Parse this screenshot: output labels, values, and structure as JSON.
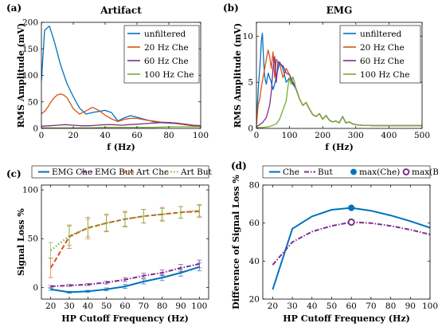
{
  "colors": {
    "blue": "#0072BD",
    "orange": "#D95319",
    "purple": "#7E2F8E",
    "green": "#77AC30",
    "yellow": "#EDB120"
  },
  "panel_labels": [
    "(a)",
    "(b)",
    "(c)",
    "(d)"
  ],
  "chart_data": [
    {
      "id": "a",
      "type": "line",
      "title": "Artifact",
      "xlabel": "f (Hz)",
      "ylabel": "RMS Amplitude (mV)",
      "xlim": [
        0,
        100
      ],
      "ylim": [
        0,
        200
      ],
      "xticks": [
        0,
        20,
        40,
        60,
        80,
        100
      ],
      "yticks": [
        0,
        50,
        100,
        150,
        200
      ],
      "xticklabels": [
        "0",
        "20",
        "40",
        "60",
        "80",
        "100"
      ],
      "yticklabels": [
        "0",
        "50",
        "100",
        "150",
        "200"
      ],
      "grid": false,
      "legend": "top-right",
      "series": [
        {
          "name": "unfiltered",
          "color": "#0072BD",
          "x": [
            0,
            2,
            5,
            8,
            12,
            16,
            20,
            24,
            28,
            32,
            36,
            40,
            44,
            48,
            52,
            56,
            60,
            65,
            70,
            75,
            80,
            85,
            90,
            95,
            100
          ],
          "y": [
            90,
            185,
            193,
            165,
            120,
            85,
            60,
            38,
            27,
            30,
            32,
            34,
            30,
            14,
            20,
            24,
            21,
            17,
            13,
            11,
            10,
            9,
            8,
            6,
            5
          ]
        },
        {
          "name": "20 Hz Che",
          "color": "#D95319",
          "x": [
            0,
            2,
            4,
            6,
            8,
            10,
            12,
            14,
            16,
            18,
            20,
            24,
            28,
            32,
            36,
            40,
            44,
            48,
            52,
            56,
            60,
            65,
            70,
            75,
            80,
            85,
            90,
            95,
            100
          ],
          "y": [
            28,
            32,
            40,
            50,
            58,
            63,
            65,
            63,
            58,
            48,
            37,
            27,
            33,
            40,
            34,
            25,
            18,
            13,
            17,
            19,
            19,
            16,
            14,
            12,
            11,
            9,
            7,
            5,
            3
          ]
        },
        {
          "name": "60 Hz Che",
          "color": "#7E2F8E",
          "x": [
            0,
            5,
            10,
            15,
            20,
            25,
            30,
            35,
            40,
            45,
            50,
            55,
            60,
            65,
            70,
            75,
            80,
            85,
            90,
            95,
            100
          ],
          "y": [
            4,
            5,
            6,
            7,
            6,
            5,
            5,
            6,
            7,
            7,
            6,
            7,
            8,
            9,
            10,
            11,
            11,
            10,
            8,
            6,
            5
          ]
        },
        {
          "name": "100 Hz Che",
          "color": "#77AC30",
          "x": [
            0,
            10,
            20,
            30,
            40,
            50,
            60,
            70,
            80,
            90,
            100
          ],
          "y": [
            1,
            1,
            1,
            1,
            2,
            2,
            2,
            2,
            3,
            3,
            3
          ]
        }
      ]
    },
    {
      "id": "b",
      "type": "line",
      "title": "EMG",
      "xlabel": "f (Hz)",
      "ylabel": "RMS Amplitude (mV)",
      "xlim": [
        0,
        500
      ],
      "ylim": [
        0,
        11.5
      ],
      "xticks": [
        0,
        100,
        200,
        300,
        400,
        500
      ],
      "yticks": [
        0,
        5,
        10
      ],
      "xticklabels": [
        "0",
        "100",
        "200",
        "300",
        "400",
        "500"
      ],
      "yticklabels": [
        "0",
        "5",
        "10"
      ],
      "grid": false,
      "legend": "top-right",
      "series": [
        {
          "name": "unfiltered",
          "color": "#0072BD",
          "x": [
            0,
            3,
            6,
            9,
            12,
            15,
            18,
            21,
            24,
            27,
            30,
            33,
            36,
            40,
            45,
            50,
            55,
            60,
            70,
            80,
            90,
            100,
            110,
            120,
            130,
            140,
            150,
            160,
            170,
            180,
            190,
            200,
            210,
            220,
            230,
            240,
            250,
            260,
            270,
            280,
            290,
            300,
            320,
            350,
            380,
            400,
            450,
            500
          ],
          "y": [
            0.5,
            2.5,
            4.5,
            6,
            7.5,
            9.5,
            10.3,
            8,
            6,
            5.2,
            4.8,
            5.5,
            6,
            5.5,
            5,
            4.2,
            4.8,
            5.6,
            7.2,
            6.5,
            5,
            5.5,
            4.8,
            4.3,
            3.2,
            2.5,
            2.8,
            2.1,
            1.5,
            1.3,
            1.6,
            1,
            1.4,
            0.9,
            0.7,
            0.8,
            0.6,
            1.3,
            0.6,
            0.7,
            0.5,
            0.4,
            0.35,
            0.3,
            0.3,
            0.3,
            0.3,
            0.3
          ]
        },
        {
          "name": "20 Hz Che",
          "color": "#D95319",
          "x": [
            0,
            5,
            10,
            15,
            20,
            25,
            30,
            35,
            40,
            45,
            50,
            55,
            60,
            70,
            80,
            90,
            100,
            110,
            120,
            130,
            140,
            150,
            160,
            170,
            180,
            190,
            200,
            210,
            220,
            230,
            240,
            250,
            260,
            270,
            280,
            290,
            300,
            320,
            350,
            380,
            400,
            450,
            500
          ],
          "y": [
            0.3,
            2.5,
            3.2,
            4.5,
            5.5,
            6.5,
            7.5,
            8.5,
            7.8,
            6.5,
            8.3,
            5.5,
            7.5,
            7,
            5.5,
            6.5,
            5.8,
            5,
            4.2,
            3.2,
            2.5,
            2.8,
            2.1,
            1.5,
            1.3,
            1.6,
            1,
            1.4,
            0.9,
            0.7,
            0.8,
            0.6,
            1.3,
            0.6,
            0.7,
            0.5,
            0.4,
            0.35,
            0.3,
            0.3,
            0.3,
            0.3,
            0.3
          ]
        },
        {
          "name": "60 Hz Che",
          "color": "#7E2F8E",
          "x": [
            0,
            10,
            20,
            30,
            40,
            45,
            50,
            55,
            60,
            65,
            70,
            80,
            90,
            100,
            110,
            120,
            130,
            140,
            150,
            160,
            170,
            180,
            190,
            200,
            210,
            220,
            230,
            240,
            250,
            260,
            270,
            280,
            290,
            300,
            320,
            350,
            380,
            400,
            450,
            500
          ],
          "y": [
            0.2,
            0.4,
            0.7,
            1.2,
            2.5,
            4,
            6.5,
            7.8,
            5,
            7.2,
            7,
            6.8,
            6,
            5.8,
            5,
            4.2,
            3.2,
            2.5,
            2.8,
            2.1,
            1.5,
            1.3,
            1.6,
            1,
            1.4,
            0.9,
            0.7,
            0.8,
            0.6,
            1.3,
            0.6,
            0.7,
            0.5,
            0.4,
            0.35,
            0.3,
            0.3,
            0.3,
            0.3,
            0.3
          ]
        },
        {
          "name": "100 Hz Che",
          "color": "#77AC30",
          "x": [
            0,
            20,
            40,
            60,
            70,
            80,
            90,
            95,
            100,
            105,
            110,
            115,
            120,
            130,
            140,
            150,
            160,
            170,
            180,
            190,
            200,
            210,
            220,
            230,
            240,
            250,
            260,
            270,
            280,
            290,
            300,
            320,
            350,
            380,
            400,
            450,
            500
          ],
          "y": [
            0.1,
            0.1,
            0.2,
            0.5,
            1,
            2,
            3,
            4.5,
            5.5,
            4.8,
            5.6,
            5,
            4.2,
            3.2,
            2.5,
            2.8,
            2.1,
            1.5,
            1.3,
            1.6,
            1,
            1.4,
            0.9,
            0.7,
            0.8,
            0.6,
            1.3,
            0.6,
            0.7,
            0.5,
            0.4,
            0.35,
            0.3,
            0.3,
            0.3,
            0.3,
            0.3
          ]
        }
      ]
    },
    {
      "id": "c",
      "type": "line",
      "xlabel": "HP Cutoff Frequency (Hz)",
      "ylabel": "Signal Loss %",
      "xlim": [
        15,
        105
      ],
      "ylim": [
        -12,
        105
      ],
      "xticks": [
        20,
        30,
        40,
        50,
        60,
        70,
        80,
        90,
        100
      ],
      "yticks": [
        0,
        50,
        100
      ],
      "xticklabels": [
        "20",
        "30",
        "40",
        "50",
        "60",
        "70",
        "80",
        "90",
        "100"
      ],
      "yticklabels": [
        "0",
        "50",
        "100"
      ],
      "grid": false,
      "legend": "top",
      "series": [
        {
          "name": "EMG Che",
          "color": "#0072BD",
          "dash": "solid",
          "x": [
            20,
            30,
            40,
            50,
            60,
            70,
            80,
            90,
            100
          ],
          "y": [
            -2,
            -5,
            -4,
            -2,
            1,
            6,
            10,
            15,
            21
          ],
          "err": [
            1,
            1,
            1,
            1.5,
            2,
            2.5,
            3,
            3.5,
            4
          ]
        },
        {
          "name": "EMG But",
          "color": "#7E2F8E",
          "dash": "dashdot",
          "x": [
            20,
            30,
            40,
            50,
            60,
            70,
            80,
            90,
            100
          ],
          "y": [
            1,
            2,
            3,
            5,
            8,
            12,
            15,
            20,
            24
          ],
          "err": [
            1,
            1,
            1,
            1.5,
            2,
            2.5,
            3,
            3.5,
            4
          ]
        },
        {
          "name": "Art Che",
          "color": "#D95319",
          "dash": "dash",
          "x": [
            20,
            30,
            40,
            50,
            60,
            70,
            80,
            90,
            100
          ],
          "y": [
            20,
            52,
            61,
            66,
            70,
            73,
            75,
            77,
            78
          ],
          "err": [
            10,
            12,
            11,
            9,
            8,
            7,
            7,
            6,
            6
          ]
        },
        {
          "name": "Art But",
          "color": "#77AC30",
          "dash": "dot",
          "x": [
            20,
            30,
            40,
            50,
            60,
            70,
            80,
            90,
            100
          ],
          "y": [
            38,
            53,
            61,
            66,
            70,
            73,
            75,
            77,
            79
          ],
          "err": [
            8,
            10,
            9,
            8,
            7,
            7,
            6,
            6,
            6
          ]
        }
      ]
    },
    {
      "id": "d",
      "type": "line",
      "xlabel": "HP Cutoff Frequency (Hz)",
      "ylabel": "Difference of Signal Loss %",
      "xlim": [
        15,
        100
      ],
      "ylim": [
        20,
        80
      ],
      "xticks": [
        20,
        30,
        40,
        50,
        60,
        70,
        80,
        90,
        100
      ],
      "yticks": [
        20,
        40,
        60,
        80
      ],
      "xticklabels": [
        "20",
        "30",
        "40",
        "50",
        "60",
        "70",
        "80",
        "90",
        "100"
      ],
      "yticklabels": [
        "20",
        "40",
        "60",
        "80"
      ],
      "grid": false,
      "legend": "top",
      "series": [
        {
          "name": "Che",
          "color": "#0072BD",
          "dash": "solid",
          "x": [
            20,
            30,
            40,
            50,
            60,
            70,
            80,
            90,
            100
          ],
          "y": [
            25,
            57,
            63.5,
            67,
            68,
            66.5,
            64,
            61,
            57.5
          ]
        },
        {
          "name": "But",
          "color": "#7E2F8E",
          "dash": "dashdot",
          "x": [
            20,
            30,
            40,
            50,
            60,
            70,
            80,
            90,
            100
          ],
          "y": [
            38,
            50,
            55.5,
            58.5,
            60.5,
            60,
            58.5,
            56.5,
            54
          ]
        }
      ],
      "markers": [
        {
          "name": "max(Che)",
          "color": "#0072BD",
          "style": "filled",
          "x": 60,
          "y": 68
        },
        {
          "name": "max(But)",
          "color": "#7E2F8E",
          "style": "ring",
          "x": 60,
          "y": 60.5
        }
      ]
    }
  ]
}
